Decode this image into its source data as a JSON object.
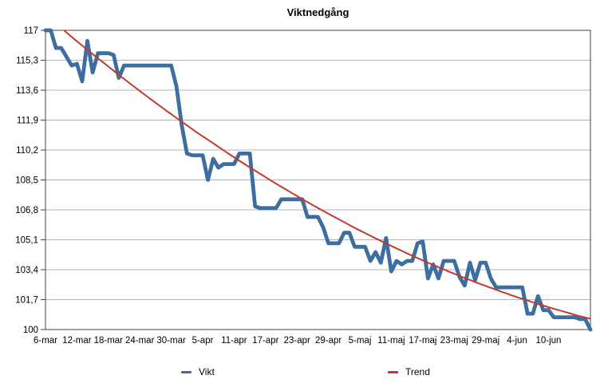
{
  "title": "Viktnedgång",
  "legend": {
    "vikt_label": "Vikt",
    "trend_label": "Trend"
  },
  "colors": {
    "vikt": "#3c6e9f",
    "trend": "#c13a2c",
    "grid": "#b4b4b4",
    "frame": "#454545",
    "text": "#000000",
    "background": "#ffffff"
  },
  "chart_data": {
    "type": "line",
    "title": "Viktnedgång",
    "xlabel": "",
    "ylabel": "",
    "ylim": [
      100,
      117
    ],
    "grid": "horizontal",
    "legend_position": "bottom",
    "y_tick_values": [
      117,
      115.3,
      113.6,
      111.9,
      110.2,
      108.5,
      106.8,
      105.1,
      103.4,
      101.7,
      100
    ],
    "y_tick_labels": [
      "117",
      "115,3",
      "113,6",
      "111,9",
      "110,2",
      "108,5",
      "106,8",
      "105,1",
      "103,4",
      "101,7",
      "100"
    ],
    "x_tick_indices": [
      0,
      6,
      12,
      18,
      24,
      30,
      36,
      42,
      48,
      54,
      60,
      66,
      72,
      78,
      84,
      90,
      96
    ],
    "x_tick_labels": [
      "6-mar",
      "12-mar",
      "18-mar",
      "24-mar",
      "30-mar",
      "5-apr",
      "11-apr",
      "17-apr",
      "23-apr",
      "29-apr",
      "5-maj",
      "11-maj",
      "17-maj",
      "23-maj",
      "29-maj",
      "4-jun",
      "10-jun"
    ],
    "x": [
      "6-mar",
      "7-mar",
      "8-mar",
      "9-mar",
      "10-mar",
      "11-mar",
      "12-mar",
      "13-mar",
      "14-mar",
      "15-mar",
      "16-mar",
      "17-mar",
      "18-mar",
      "19-mar",
      "20-mar",
      "21-mar",
      "22-mar",
      "23-mar",
      "24-mar",
      "25-mar",
      "26-mar",
      "27-mar",
      "28-mar",
      "29-mar",
      "30-mar",
      "31-mar",
      "1-apr",
      "2-apr",
      "3-apr",
      "4-apr",
      "5-apr",
      "6-apr",
      "7-apr",
      "8-apr",
      "9-apr",
      "10-apr",
      "11-apr",
      "12-apr",
      "13-apr",
      "14-apr",
      "15-apr",
      "16-apr",
      "17-apr",
      "18-apr",
      "19-apr",
      "20-apr",
      "21-apr",
      "22-apr",
      "23-apr",
      "24-apr",
      "25-apr",
      "26-apr",
      "27-apr",
      "28-apr",
      "29-apr",
      "30-apr",
      "1-maj",
      "2-maj",
      "3-maj",
      "4-maj",
      "5-maj",
      "6-maj",
      "7-maj",
      "8-maj",
      "9-maj",
      "10-maj",
      "11-maj",
      "12-maj",
      "13-maj",
      "14-maj",
      "15-maj",
      "16-maj",
      "17-maj",
      "18-maj",
      "19-maj",
      "20-maj",
      "21-maj",
      "22-maj",
      "23-maj",
      "24-maj",
      "25-maj",
      "26-maj",
      "27-maj",
      "28-maj",
      "29-maj",
      "30-maj",
      "31-maj",
      "1-jun",
      "2-jun",
      "3-jun",
      "4-jun",
      "5-jun",
      "6-jun",
      "7-jun",
      "8-jun",
      "9-jun",
      "10-jun",
      "11-jun",
      "12-jun",
      "13-jun",
      "14-jun",
      "15-jun",
      "16-jun",
      "17-jun",
      "18-jun"
    ],
    "series": [
      {
        "name": "Vikt",
        "color": "#3c6e9f",
        "stroke_width": 4.8,
        "clip_to_plot": false,
        "values": [
          117,
          117,
          116,
          116,
          115.5,
          115,
          115.1,
          114.1,
          116.4,
          114.6,
          115.7,
          115.7,
          115.7,
          115.6,
          114.3,
          115,
          115,
          115,
          115,
          115,
          115,
          115,
          115,
          115,
          115,
          113.8,
          111.6,
          110,
          109.9,
          109.9,
          109.9,
          108.5,
          109.7,
          109.2,
          109.4,
          109.4,
          109.4,
          110,
          110,
          110,
          107,
          106.9,
          106.9,
          106.9,
          106.9,
          107.4,
          107.4,
          107.4,
          107.4,
          107.4,
          106.4,
          106.4,
          106.4,
          105.8,
          104.9,
          104.9,
          104.9,
          105.5,
          105.5,
          104.7,
          104.7,
          104.7,
          103.9,
          104.4,
          103.8,
          105.2,
          103.3,
          103.9,
          103.7,
          103.9,
          103.9,
          104.9,
          105,
          102.9,
          103.7,
          102.9,
          103.9,
          103.9,
          103.9,
          103,
          102.5,
          103.8,
          102.8,
          103.8,
          103.8,
          102.9,
          102.4,
          102.4,
          102.4,
          102.4,
          102.4,
          102.4,
          100.9,
          100.9,
          101.9,
          101.1,
          101.1,
          100.7,
          100.7,
          100.7,
          100.7,
          100.7,
          100.6,
          100.6,
          100
        ]
      },
      {
        "name": "Trend",
        "color": "#c13a2c",
        "stroke_width": 2,
        "clip_to_plot": true,
        "values": [
          117.89,
          117.63,
          117.38,
          117.13,
          116.88,
          116.63,
          116.38,
          116.14,
          115.89,
          115.65,
          115.41,
          115.18,
          114.94,
          114.7,
          114.47,
          114.24,
          114.01,
          113.78,
          113.56,
          113.33,
          113.11,
          112.89,
          112.67,
          112.45,
          112.24,
          112.02,
          111.81,
          111.6,
          111.39,
          111.18,
          110.98,
          110.78,
          110.58,
          110.38,
          110.18,
          109.98,
          109.79,
          109.59,
          109.4,
          109.21,
          109.03,
          108.84,
          108.66,
          108.47,
          108.29,
          108.11,
          107.94,
          107.76,
          107.59,
          107.41,
          107.24,
          107.07,
          106.91,
          106.74,
          106.58,
          106.42,
          106.26,
          106.1,
          105.94,
          105.78,
          105.63,
          105.48,
          105.33,
          105.18,
          105.04,
          104.89,
          104.75,
          104.61,
          104.47,
          104.33,
          104.2,
          104.06,
          103.93,
          103.8,
          103.67,
          103.54,
          103.42,
          103.29,
          103.17,
          103.05,
          102.93,
          102.82,
          102.7,
          102.59,
          102.48,
          102.37,
          102.26,
          102.15,
          102.05,
          101.94,
          101.84,
          101.74,
          101.65,
          101.55,
          101.45,
          101.36,
          101.27,
          101.18,
          101.1,
          101.01,
          100.93,
          100.84,
          100.76,
          100.69,
          100.61
        ]
      }
    ]
  }
}
